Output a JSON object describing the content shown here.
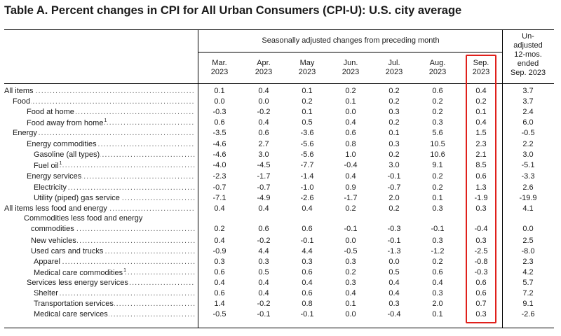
{
  "title": "Table A. Percent changes in CPI for All Urban Consumers (CPI-U): U.S. city average",
  "header": {
    "group_label": "Seasonally adjusted changes from preceding month",
    "unadjusted_label": [
      "Un-",
      "adjusted",
      "12-mos.",
      "ended",
      "Sep. 2023"
    ],
    "columns": [
      {
        "month": "Mar.",
        "year": "2023"
      },
      {
        "month": "Apr.",
        "year": "2023"
      },
      {
        "month": "May",
        "year": "2023"
      },
      {
        "month": "Jun.",
        "year": "2023"
      },
      {
        "month": "Jul.",
        "year": "2023"
      },
      {
        "month": "Aug.",
        "year": "2023"
      },
      {
        "month": "Sep.",
        "year": "2023"
      }
    ]
  },
  "highlight_color": "#e0201b",
  "rows": [
    {
      "label": "All items",
      "sup": "",
      "values": [
        "0.1",
        "0.4",
        "0.1",
        "0.2",
        "0.2",
        "0.6",
        "0.4",
        "3.7"
      ]
    },
    {
      "label": "Food",
      "sup": "",
      "values": [
        "0.0",
        "0.0",
        "0.2",
        "0.1",
        "0.2",
        "0.2",
        "0.2",
        "3.7"
      ]
    },
    {
      "label": "Food at home",
      "sup": "",
      "values": [
        "-0.3",
        "-0.2",
        "0.1",
        "0.0",
        "0.3",
        "0.2",
        "0.1",
        "2.4"
      ]
    },
    {
      "label": "Food away from home",
      "sup": "1",
      "values": [
        "0.6",
        "0.4",
        "0.5",
        "0.4",
        "0.2",
        "0.3",
        "0.4",
        "6.0"
      ]
    },
    {
      "label": "Energy",
      "sup": "",
      "values": [
        "-3.5",
        "0.6",
        "-3.6",
        "0.6",
        "0.1",
        "5.6",
        "1.5",
        "-0.5"
      ]
    },
    {
      "label": "Energy commodities",
      "sup": "",
      "values": [
        "-4.6",
        "2.7",
        "-5.6",
        "0.8",
        "0.3",
        "10.5",
        "2.3",
        "2.2"
      ]
    },
    {
      "label": "Gasoline (all types)",
      "sup": "",
      "values": [
        "-4.6",
        "3.0",
        "-5.6",
        "1.0",
        "0.2",
        "10.6",
        "2.1",
        "3.0"
      ]
    },
    {
      "label": "Fuel oil",
      "sup": "1",
      "values": [
        "-4.0",
        "-4.5",
        "-7.7",
        "-0.4",
        "3.0",
        "9.1",
        "8.5",
        "-5.1"
      ]
    },
    {
      "label": "Energy services",
      "sup": "",
      "values": [
        "-2.3",
        "-1.7",
        "-1.4",
        "0.4",
        "-0.1",
        "0.2",
        "0.6",
        "-3.3"
      ]
    },
    {
      "label": "Electricity",
      "sup": "",
      "values": [
        "-0.7",
        "-0.7",
        "-1.0",
        "0.9",
        "-0.7",
        "0.2",
        "1.3",
        "2.6"
      ]
    },
    {
      "label": "Utility (piped) gas service",
      "sup": "",
      "values": [
        "-7.1",
        "-4.9",
        "-2.6",
        "-1.7",
        "2.0",
        "0.1",
        "-1.9",
        "-19.9"
      ]
    },
    {
      "label": "All items less food and energy",
      "sup": "",
      "values": [
        "0.4",
        "0.4",
        "0.4",
        "0.2",
        "0.2",
        "0.3",
        "0.3",
        "4.1"
      ]
    },
    {
      "label": "Commodities less food and energy",
      "label2": "commodities",
      "sup": "",
      "values": [
        "0.2",
        "0.6",
        "0.6",
        "-0.1",
        "-0.3",
        "-0.1",
        "-0.4",
        "0.0"
      ]
    },
    {
      "label": "New vehicles",
      "sup": "",
      "values": [
        "0.4",
        "-0.2",
        "-0.1",
        "0.0",
        "-0.1",
        "0.3",
        "0.3",
        "2.5"
      ]
    },
    {
      "label": "Used cars and trucks",
      "sup": "",
      "values": [
        "-0.9",
        "4.4",
        "4.4",
        "-0.5",
        "-1.3",
        "-1.2",
        "-2.5",
        "-8.0"
      ]
    },
    {
      "label": "Apparel",
      "sup": "",
      "values": [
        "0.3",
        "0.3",
        "0.3",
        "0.3",
        "0.0",
        "0.2",
        "-0.8",
        "2.3"
      ]
    },
    {
      "label": "Medical  care  commodities",
      "sup": "1",
      "values": [
        "0.6",
        "0.5",
        "0.6",
        "0.2",
        "0.5",
        "0.6",
        "-0.3",
        "4.2"
      ]
    },
    {
      "label": "Services less energy services",
      "sup": "",
      "values": [
        "0.4",
        "0.4",
        "0.4",
        "0.3",
        "0.4",
        "0.4",
        "0.6",
        "5.7"
      ]
    },
    {
      "label": "Shelter",
      "sup": "",
      "values": [
        "0.6",
        "0.4",
        "0.6",
        "0.4",
        "0.4",
        "0.3",
        "0.6",
        "7.2"
      ]
    },
    {
      "label": "Transportation services",
      "sup": "",
      "values": [
        "1.4",
        "-0.2",
        "0.8",
        "0.1",
        "0.3",
        "2.0",
        "0.7",
        "9.1"
      ]
    },
    {
      "label": "Medical care services",
      "sup": "",
      "values": [
        "-0.5",
        "-0.1",
        "-0.1",
        "0.0",
        "-0.4",
        "0.1",
        "0.3",
        "-2.6"
      ]
    }
  ]
}
